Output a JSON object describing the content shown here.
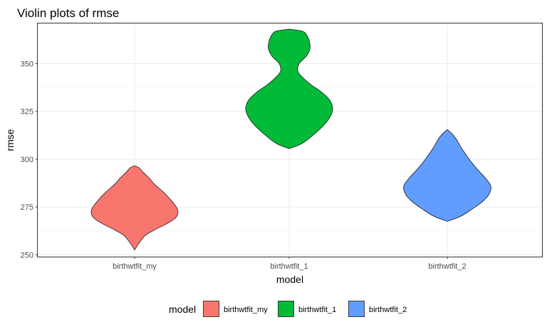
{
  "chart_data": {
    "type": "violin",
    "title": "Violin plots of rmse",
    "xlabel": "model",
    "ylabel": "rmse",
    "categories": [
      "birthwtfit_my",
      "birthwtfit_1",
      "birthwtfit_2"
    ],
    "ylim": [
      249,
      371
    ],
    "y_ticks": [
      250,
      275,
      300,
      325,
      350
    ],
    "y_tick_labels": [
      "250",
      "275",
      "300",
      "325",
      "350"
    ],
    "grid": true,
    "legend": {
      "title": "model",
      "position": "bottom",
      "entries": [
        "birthwtfit_my",
        "birthwtfit_1",
        "birthwtfit_2"
      ]
    },
    "series": [
      {
        "name": "birthwtfit_my",
        "color": "#f8766d",
        "min": 252.5,
        "max": 296.5,
        "density": [
          [
            252.5,
            0.0
          ],
          [
            256,
            0.1
          ],
          [
            260,
            0.24
          ],
          [
            263,
            0.46
          ],
          [
            266,
            0.72
          ],
          [
            269,
            0.93
          ],
          [
            272,
            1.0
          ],
          [
            275,
            0.96
          ],
          [
            279,
            0.82
          ],
          [
            283,
            0.65
          ],
          [
            287,
            0.45
          ],
          [
            290,
            0.34
          ],
          [
            293,
            0.2
          ],
          [
            295.5,
            0.1
          ],
          [
            296.5,
            0.0
          ]
        ]
      },
      {
        "name": "birthwtfit_1",
        "color": "#00ba38",
        "min": 305.5,
        "max": 368,
        "density": [
          [
            305.5,
            0.0
          ],
          [
            308,
            0.28
          ],
          [
            312,
            0.52
          ],
          [
            316,
            0.72
          ],
          [
            320,
            0.88
          ],
          [
            324,
            0.98
          ],
          [
            327,
            1.0
          ],
          [
            331,
            0.93
          ],
          [
            335,
            0.75
          ],
          [
            339,
            0.5
          ],
          [
            343,
            0.3
          ],
          [
            346,
            0.2
          ],
          [
            350,
            0.23
          ],
          [
            354,
            0.4
          ],
          [
            358,
            0.48
          ],
          [
            362,
            0.46
          ],
          [
            365,
            0.4
          ],
          [
            367,
            0.3
          ],
          [
            368,
            0.0
          ]
        ]
      },
      {
        "name": "birthwtfit_2",
        "color": "#619cff",
        "min": 267.5,
        "max": 315.5,
        "density": [
          [
            267.5,
            0.0
          ],
          [
            270,
            0.3
          ],
          [
            274,
            0.58
          ],
          [
            278,
            0.82
          ],
          [
            282,
            0.97
          ],
          [
            286,
            1.0
          ],
          [
            290,
            0.88
          ],
          [
            294,
            0.72
          ],
          [
            298,
            0.57
          ],
          [
            302,
            0.44
          ],
          [
            306,
            0.32
          ],
          [
            310,
            0.22
          ],
          [
            313,
            0.12
          ],
          [
            315.5,
            0.0
          ]
        ]
      }
    ]
  }
}
